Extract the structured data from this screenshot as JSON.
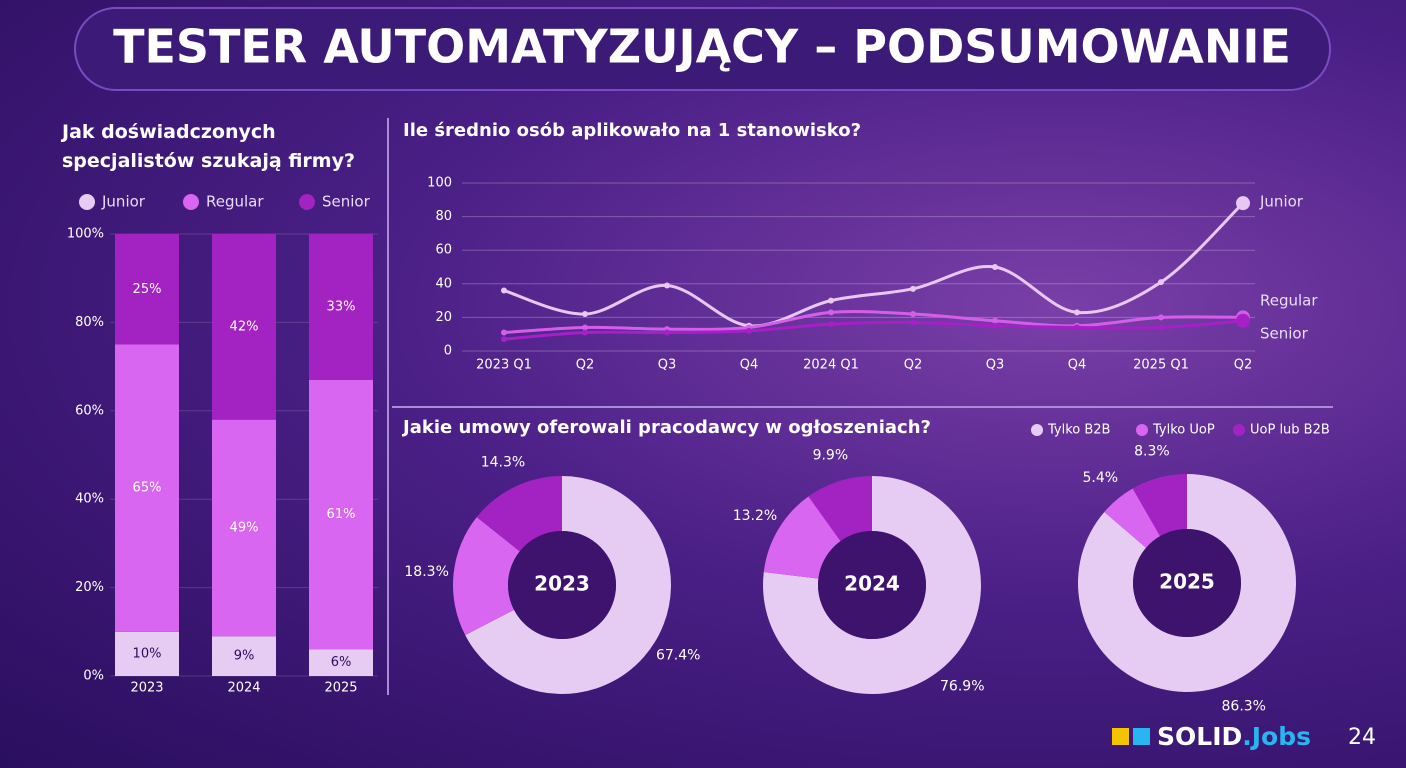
{
  "title": "TESTER AUTOMATYZUJĄCY – PODSUMOWANIE",
  "logo": {
    "main": "SOLID",
    "accent": ".Jobs"
  },
  "page_number": 24,
  "chart_data": [
    {
      "type": "stacked_bar",
      "title": "Jak doświadczonych specjalistów szukają firmy?",
      "categories": [
        "2023",
        "2024",
        "2025"
      ],
      "series": [
        {
          "name": "Junior",
          "color": "#e6cbf3",
          "values": [
            10,
            9,
            6
          ],
          "value_labels": [
            "10%",
            "9%",
            "6%"
          ]
        },
        {
          "name": "Regular",
          "color": "#d966f0",
          "values": [
            65,
            49,
            61
          ],
          "value_labels": [
            "65%",
            "49%",
            "61%"
          ]
        },
        {
          "name": "Senior",
          "color": "#a323c2",
          "values": [
            25,
            42,
            33
          ],
          "value_labels": [
            "25%",
            "42%",
            "33%"
          ]
        }
      ],
      "ylim": [
        0,
        100
      ],
      "yticks": [
        {
          "value": 0,
          "label": "0%"
        },
        {
          "value": 20,
          "label": "20%"
        },
        {
          "value": 40,
          "label": "40%"
        },
        {
          "value": 60,
          "label": "60%"
        },
        {
          "value": 80,
          "label": "80%"
        },
        {
          "value": 100,
          "label": "100%"
        }
      ],
      "grid": true
    },
    {
      "type": "line",
      "title": "Ile średnio osób aplikowało na 1 stanowisko?",
      "categories": [
        "2023 Q1",
        "Q2",
        "Q3",
        "Q4",
        "2024 Q1",
        "Q2",
        "Q3",
        "Q4",
        "2025 Q1",
        "Q2"
      ],
      "series": [
        {
          "name": "Junior",
          "color": "#e8c8f2",
          "values": [
            36,
            22,
            39,
            15,
            30,
            37,
            50,
            23,
            41,
            88
          ]
        },
        {
          "name": "Regular",
          "color": "#d55ee9",
          "values": [
            11,
            14,
            13,
            14,
            23,
            22,
            18,
            15,
            20,
            20
          ]
        },
        {
          "name": "Senior",
          "color": "#a520c6",
          "values": [
            7,
            11,
            11,
            12,
            16,
            17,
            15,
            14,
            14,
            18
          ]
        }
      ],
      "ylim": [
        0,
        100
      ],
      "yticks": [
        0,
        20,
        40,
        60,
        80,
        100
      ],
      "grid": true
    },
    {
      "type": "donut",
      "title": "Jakie umowy oferowali pracodawcy w ogłoszeniach?",
      "categories": [
        "Tylko B2B",
        "Tylko UoP",
        "UoP lub B2B"
      ],
      "colors": [
        "#e6cbf3",
        "#d966f0",
        "#a323c2"
      ],
      "pies": [
        {
          "name": "2023",
          "values": [
            67.4,
            18.3,
            14.3
          ],
          "value_labels": [
            "67.4%",
            "18.3%",
            "14.3%"
          ]
        },
        {
          "name": "2024",
          "values": [
            76.9,
            13.2,
            9.9
          ],
          "value_labels": [
            "76.9%",
            "13.2%",
            "9.9%"
          ]
        },
        {
          "name": "2025",
          "values": [
            86.3,
            5.4,
            8.3
          ],
          "value_labels": [
            "86.3%",
            "5.4%",
            "8.3%"
          ]
        }
      ]
    }
  ]
}
